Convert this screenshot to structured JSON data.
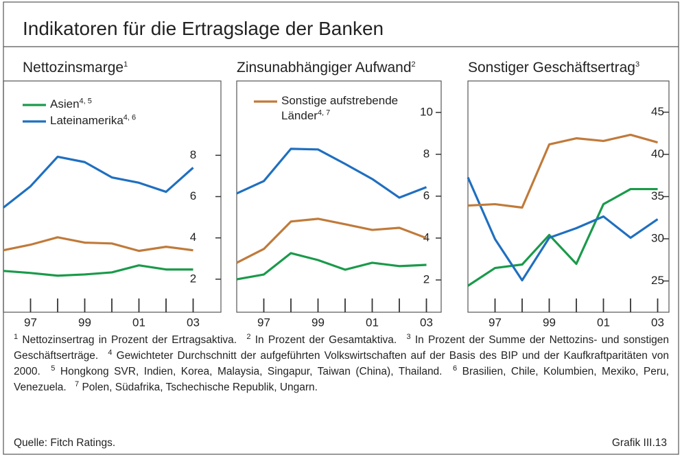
{
  "title": "Indikatoren für die Ertragslage der Banken",
  "chart_data": [
    {
      "type": "line",
      "title": "Nettozinsmarge",
      "title_note": "1",
      "categories": [
        null,
        "97",
        null,
        "99",
        null,
        "01",
        null,
        "03"
      ],
      "ylim": [
        0.4,
        11.6
      ],
      "yticks": [
        2,
        4,
        6,
        8
      ],
      "series": [
        {
          "name": "Asien",
          "footnote_ref": "4, 5",
          "color": "#1a9a4a",
          "values": [
            2.4,
            2.3,
            2.17,
            2.23,
            2.33,
            2.67,
            2.47,
            2.47
          ]
        },
        {
          "name": "Lateinamerika",
          "footnote_ref": "4, 6",
          "color": "#1f6fc0",
          "values": [
            5.47,
            6.5,
            7.93,
            7.67,
            6.93,
            6.67,
            6.23,
            7.4
          ]
        },
        {
          "color": "#c07a3a",
          "values": [
            3.4,
            3.67,
            4.03,
            3.77,
            3.73,
            3.37,
            3.57,
            3.4
          ]
        }
      ]
    },
    {
      "type": "line",
      "title": "Zinsunabhängiger Aufwand",
      "title_note": "2",
      "categories": [
        null,
        "97",
        null,
        "99",
        null,
        "01",
        null,
        "03"
      ],
      "ylim": [
        0.46,
        11.5
      ],
      "yticks": [
        2,
        4,
        6,
        8,
        10
      ],
      "series": [
        {
          "color": "#1a9a4a",
          "values": [
            2.03,
            2.26,
            3.28,
            2.95,
            2.49,
            2.82,
            2.66,
            2.72
          ]
        },
        {
          "color": "#1f6fc0",
          "values": [
            6.13,
            6.72,
            8.26,
            8.23,
            7.54,
            6.82,
            5.93,
            6.43
          ]
        },
        {
          "name": "Sonstige aufstrebende Länder",
          "footnote_ref": "4, 7",
          "color": "#c07a3a",
          "values": [
            2.82,
            3.48,
            4.79,
            4.92,
            4.66,
            4.39,
            4.49,
            4.0
          ]
        }
      ]
    },
    {
      "type": "line",
      "title": "Sonstiger Geschäftsertrag",
      "title_note": "3",
      "categories": [
        null,
        "97",
        null,
        "99",
        null,
        "01",
        null,
        "03"
      ],
      "ylim": [
        21.3,
        48.7
      ],
      "yticks": [
        25,
        30,
        35,
        40,
        45
      ],
      "series": [
        {
          "color": "#1a9a4a",
          "values": [
            24.43,
            26.54,
            26.95,
            30.45,
            27.03,
            34.1,
            35.89,
            35.89
          ]
        },
        {
          "color": "#1f6fc0",
          "values": [
            37.28,
            29.96,
            25.08,
            30.12,
            31.26,
            32.64,
            30.12,
            32.32
          ]
        },
        {
          "color": "#c07a3a",
          "values": [
            33.94,
            34.1,
            33.7,
            41.18,
            41.91,
            41.59,
            42.32,
            41.42
          ]
        }
      ]
    }
  ],
  "footnotes": [
    {
      "mark": "1",
      "text": "Nettozinsertrag in Prozent der Ertragsaktiva."
    },
    {
      "mark": "2",
      "text": "In Prozent der Gesamtaktiva."
    },
    {
      "mark": "3",
      "text": "In Prozent der Summe der Nettozins- und sonstigen Geschäftserträge."
    },
    {
      "mark": "4",
      "text": "Gewichteter Durchschnitt der aufgeführten Volkswirtschaften auf der Basis des BIP und der Kaufkraftparitäten von 2000."
    },
    {
      "mark": "5",
      "text": "Hongkong SVR, Indien, Korea, Malaysia, Singapur, Taiwan (China), Thailand."
    },
    {
      "mark": "6",
      "text": "Brasilien, Chile, Kolumbien, Mexiko, Peru, Venezuela."
    },
    {
      "mark": "7",
      "text": "Polen, Südafrika, Tschechische Republik, Ungarn."
    }
  ],
  "source": "Quelle: Fitch Ratings.",
  "figure_label": "Grafik III.13"
}
